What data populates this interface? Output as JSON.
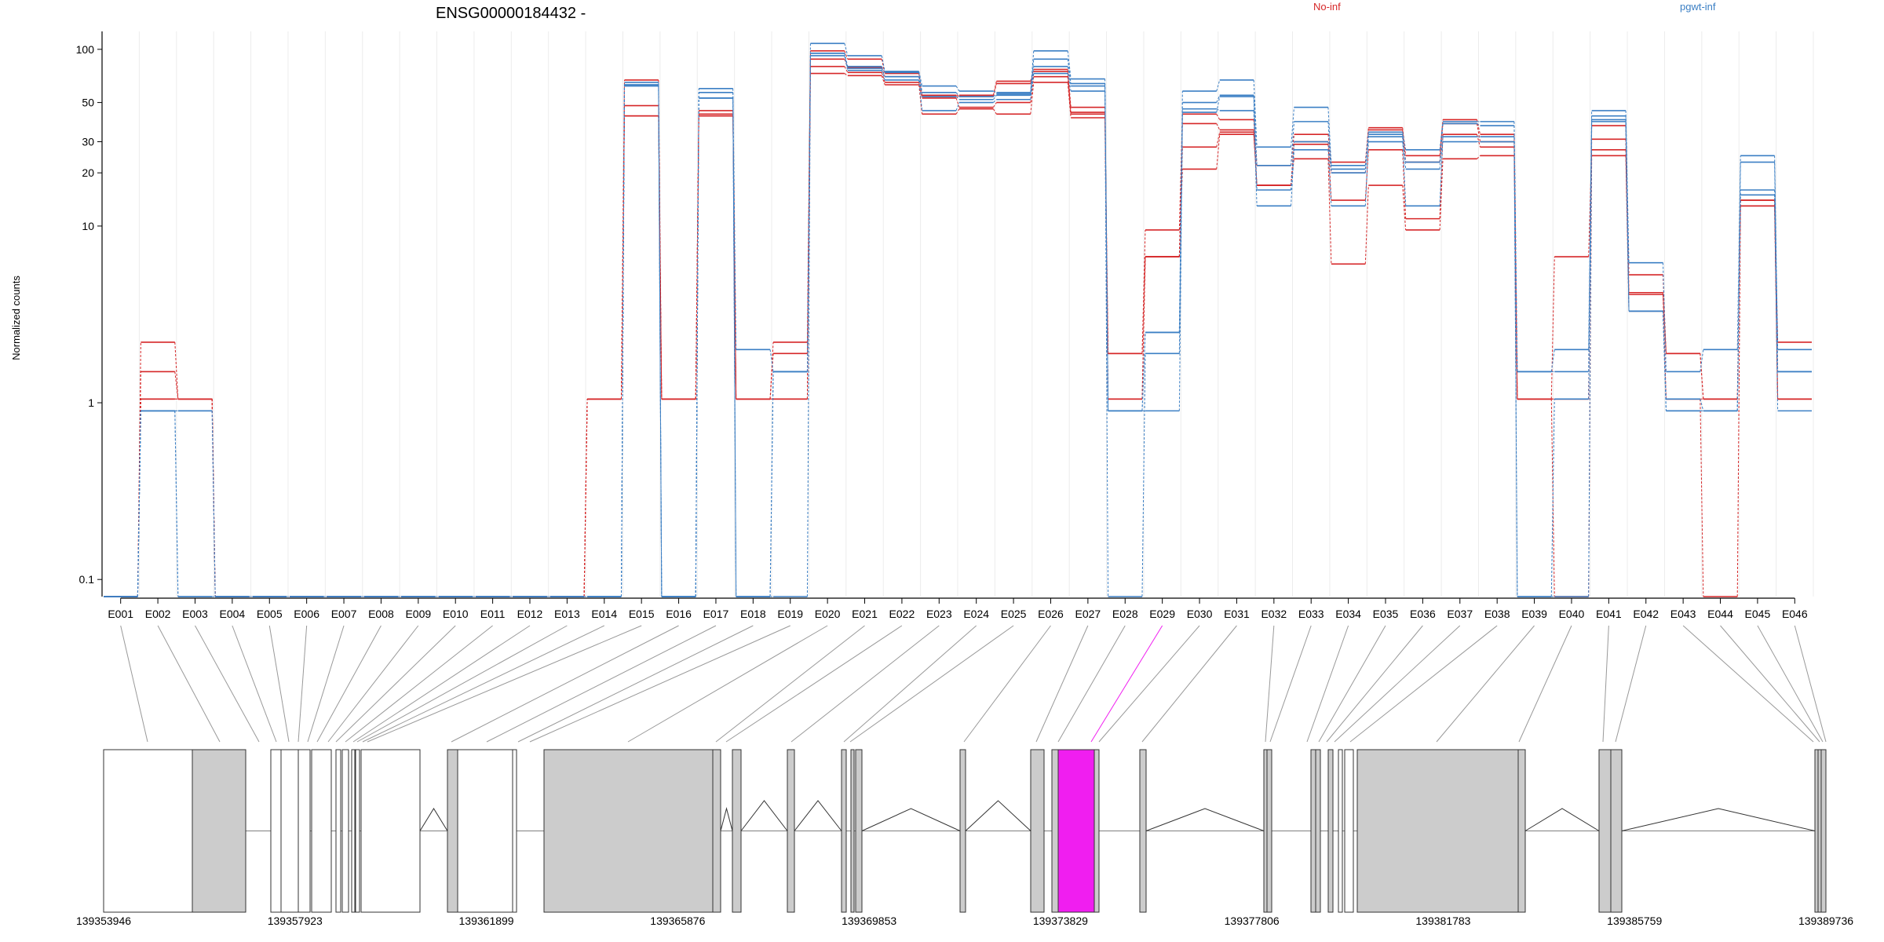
{
  "chart_data": {
    "type": "line",
    "title": "ENSG00000184432 -",
    "ylabel": "Normalized counts",
    "y_scale": "log",
    "ylim": [
      0.08,
      120
    ],
    "y_ticks": [
      {
        "value": 0.1,
        "label": "0.1"
      },
      {
        "value": 1,
        "label": "1"
      },
      {
        "value": 10,
        "label": "10"
      },
      {
        "value": 20,
        "label": "20"
      },
      {
        "value": 30,
        "label": "30"
      },
      {
        "value": 50,
        "label": "50"
      },
      {
        "value": 100,
        "label": "100"
      }
    ],
    "grid": true,
    "legend": [
      {
        "name": "No-inf",
        "color": "#d62728"
      },
      {
        "name": "pgwt-inf",
        "color": "#3b7fc4"
      }
    ],
    "categories": [
      "E001",
      "E002",
      "E003",
      "E004",
      "E005",
      "E006",
      "E007",
      "E008",
      "E009",
      "E010",
      "E011",
      "E012",
      "E013",
      "E014",
      "E015",
      "E016",
      "E017",
      "E018",
      "E019",
      "E020",
      "E021",
      "E022",
      "E023",
      "E024",
      "E025",
      "E026",
      "E027",
      "E028",
      "E029",
      "E030",
      "E031",
      "E032",
      "E033",
      "E034",
      "E035",
      "E036",
      "E037",
      "E038",
      "E039",
      "E040",
      "E041",
      "E042",
      "E043",
      "E044",
      "E045",
      "E046"
    ],
    "series": [
      {
        "group": "No-inf",
        "color": "#d62728",
        "values": [
          0.07,
          2.2,
          1.05,
          0.07,
          0.07,
          0.07,
          0.07,
          0.07,
          0.07,
          0.07,
          0.07,
          0.07,
          0.07,
          1.05,
          67,
          1.05,
          45,
          1.05,
          2.2,
          98,
          88,
          73,
          55,
          55,
          66,
          77,
          47,
          1.9,
          9.5,
          43,
          40,
          22,
          33,
          23,
          36,
          25,
          40,
          33,
          1.05,
          1.05,
          37,
          5.3,
          1.9,
          1.05,
          14,
          2.2
        ]
      },
      {
        "group": "No-inf",
        "color": "#d62728",
        "values": [
          0.07,
          1.5,
          1.05,
          0.07,
          0.07,
          0.07,
          0.07,
          0.07,
          0.07,
          0.07,
          0.07,
          0.07,
          0.07,
          1.05,
          48,
          1.05,
          43,
          1.05,
          1.9,
          88,
          79,
          70,
          54,
          54,
          64,
          75,
          44,
          1.9,
          6.7,
          38,
          35,
          17,
          30,
          20,
          35,
          23,
          38,
          30,
          1.05,
          1.05,
          31,
          4.2,
          1.9,
          1.05,
          14,
          1.05
        ]
      },
      {
        "group": "No-inf",
        "color": "#d62728",
        "values": [
          0.07,
          1.05,
          1.05,
          0.07,
          0.07,
          0.07,
          0.07,
          0.07,
          0.07,
          0.07,
          0.07,
          0.07,
          0.07,
          1.05,
          42,
          1.05,
          42,
          1.05,
          1.05,
          80,
          74,
          65,
          53,
          47,
          50,
          70,
          43,
          1.05,
          6.7,
          28,
          34,
          17,
          29,
          14,
          27,
          11,
          33,
          28,
          1.05,
          6.7,
          27,
          4.1,
          1.05,
          1.05,
          13,
          1.05
        ]
      },
      {
        "group": "No-inf",
        "color": "#d62728",
        "values": [
          0.07,
          1.05,
          1.05,
          0.07,
          0.07,
          0.07,
          0.07,
          0.07,
          0.07,
          0.07,
          0.07,
          0.07,
          0.07,
          1.05,
          42,
          1.05,
          42,
          1.05,
          1.05,
          73,
          71,
          63,
          43,
          46,
          43,
          65,
          41,
          1.05,
          6.7,
          21,
          33,
          17,
          24,
          6.1,
          17,
          9.5,
          24,
          25,
          1.05,
          0.07,
          25,
          3.3,
          1.05,
          0.07,
          13,
          1.05
        ]
      },
      {
        "group": "pgwt-inf",
        "color": "#3b7fc4",
        "values": [
          0.07,
          0.9,
          0.9,
          0.07,
          0.07,
          0.07,
          0.07,
          0.07,
          0.07,
          0.07,
          0.07,
          0.07,
          0.07,
          0.07,
          65,
          0.07,
          60,
          2.0,
          1.5,
          108,
          92,
          75,
          62,
          58,
          57,
          98,
          68,
          0.9,
          2.5,
          58,
          67,
          28,
          47,
          22,
          34,
          27,
          39,
          39,
          1.5,
          2.0,
          45,
          6.2,
          1.5,
          2.0,
          25,
          2.0
        ]
      },
      {
        "group": "pgwt-inf",
        "color": "#3b7fc4",
        "values": [
          0.07,
          0.9,
          0.07,
          0.07,
          0.07,
          0.07,
          0.07,
          0.07,
          0.07,
          0.07,
          0.07,
          0.07,
          0.07,
          0.07,
          63,
          0.07,
          57,
          0.07,
          1.5,
          95,
          80,
          74,
          57,
          54,
          56,
          88,
          64,
          0.9,
          2.5,
          50,
          55,
          22,
          39,
          20,
          33,
          21,
          38,
          37,
          1.5,
          1.5,
          42,
          3.3,
          1.05,
          0.9,
          23,
          1.5
        ]
      },
      {
        "group": "pgwt-inf",
        "color": "#3b7fc4",
        "values": [
          0.07,
          0.9,
          0.07,
          0.07,
          0.07,
          0.07,
          0.07,
          0.07,
          0.07,
          0.07,
          0.07,
          0.07,
          0.07,
          0.07,
          63,
          0.07,
          53,
          0.07,
          1.5,
          95,
          78,
          70,
          54,
          52,
          55,
          80,
          62,
          0.9,
          0.9,
          44,
          54,
          16,
          30,
          21,
          32,
          13,
          32,
          32,
          0.07,
          1.05,
          39,
          3.3,
          0.9,
          0.9,
          16,
          1.5
        ]
      },
      {
        "group": "pgwt-inf",
        "color": "#3b7fc4",
        "values": [
          0.07,
          0.9,
          0.9,
          0.07,
          0.07,
          0.07,
          0.07,
          0.07,
          0.07,
          0.07,
          0.07,
          0.07,
          0.07,
          0.07,
          62,
          0.07,
          53,
          0.07,
          0.07,
          92,
          76,
          67,
          45,
          50,
          52,
          73,
          58,
          0.07,
          1.9,
          46,
          45,
          13,
          27,
          13,
          30,
          23,
          30,
          30,
          0.07,
          0.07,
          40,
          3.3,
          0.9,
          0.9,
          15,
          0.9
        ]
      }
    ],
    "highlighted_exon": "E029",
    "highlight_color": "#f01ef0",
    "genomic_ticks": [
      "139353946",
      "139357923",
      "139361899",
      "139365876",
      "139369853",
      "139373829",
      "139377806",
      "139381783",
      "139385759",
      "139389736"
    ]
  }
}
